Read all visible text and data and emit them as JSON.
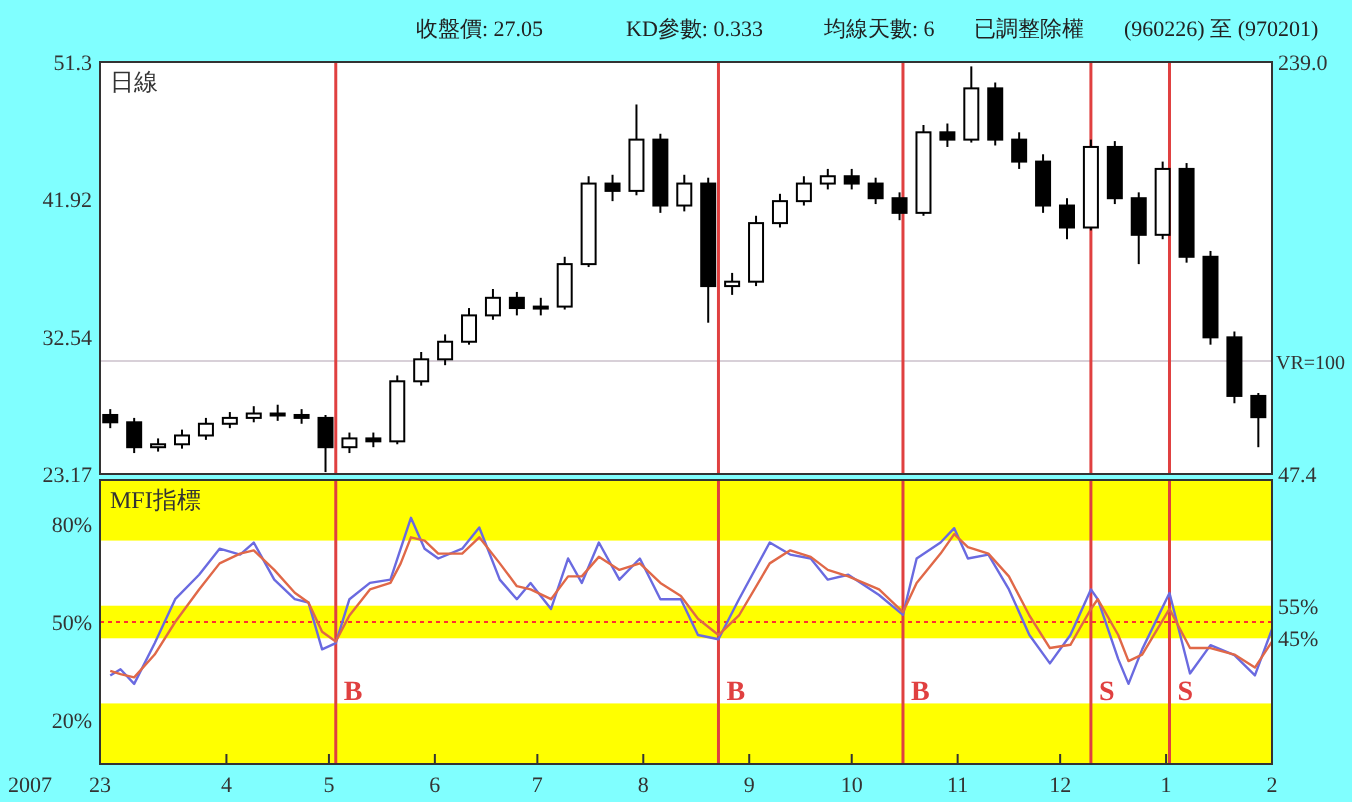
{
  "chart_data": [
    {
      "type": "candlestick",
      "title": "日線",
      "annotations": [
        "收盤價: 27.05",
        "KD參數: 0.333",
        "均線天數: 6",
        "已調整除權",
        "(960226) 至 (970201)"
      ],
      "x": [
        "2007-02-26",
        "2007-03-05",
        "2007-03-12",
        "2007-03-19",
        "2007-03-26",
        "2007-04-02",
        "2007-04-09",
        "2007-04-16",
        "2007-04-23",
        "2007-04-30",
        "2007-05-07",
        "2007-05-14",
        "2007-05-21",
        "2007-05-28",
        "2007-06-04",
        "2007-06-11",
        "2007-06-18",
        "2007-06-25",
        "2007-07-02",
        "2007-07-09",
        "2007-07-16",
        "2007-07-23",
        "2007-07-30",
        "2007-08-06",
        "2007-08-13",
        "2007-08-20",
        "2007-08-27",
        "2007-09-03",
        "2007-09-10",
        "2007-09-17",
        "2007-09-24",
        "2007-10-01",
        "2007-10-08",
        "2007-10-15",
        "2007-10-22",
        "2007-10-29",
        "2007-11-05",
        "2007-11-12",
        "2007-11-19",
        "2007-11-26",
        "2007-12-03",
        "2007-12-10",
        "2007-12-17",
        "2007-12-24",
        "2007-12-31",
        "2008-01-07",
        "2008-01-14",
        "2008-01-21",
        "2008-01-28"
      ],
      "ohlc": [
        [
          27.2,
          27.6,
          26.3,
          26.7
        ],
        [
          26.7,
          27.0,
          24.6,
          25.0
        ],
        [
          25.0,
          25.6,
          24.7,
          25.2
        ],
        [
          25.2,
          26.2,
          24.9,
          25.8
        ],
        [
          25.8,
          27.0,
          25.5,
          26.6
        ],
        [
          26.6,
          27.4,
          26.3,
          27.0
        ],
        [
          27.0,
          27.8,
          26.7,
          27.3
        ],
        [
          27.3,
          27.9,
          26.8,
          27.2
        ],
        [
          27.2,
          27.6,
          26.6,
          27.0
        ],
        [
          27.0,
          27.2,
          23.3,
          25.0
        ],
        [
          25.0,
          26.0,
          24.6,
          25.6
        ],
        [
          25.6,
          26.0,
          25.0,
          25.4
        ],
        [
          25.4,
          29.9,
          25.2,
          29.5
        ],
        [
          29.5,
          31.5,
          29.2,
          31.0
        ],
        [
          31.0,
          32.7,
          30.6,
          32.2
        ],
        [
          32.2,
          34.5,
          32.0,
          34.0
        ],
        [
          34.0,
          35.8,
          33.7,
          35.2
        ],
        [
          35.2,
          35.6,
          34.0,
          34.5
        ],
        [
          34.5,
          35.2,
          34.0,
          34.6
        ],
        [
          34.6,
          38.0,
          34.4,
          37.5
        ],
        [
          37.5,
          43.5,
          37.3,
          43.0
        ],
        [
          43.0,
          43.6,
          41.8,
          42.5
        ],
        [
          42.5,
          48.4,
          42.2,
          46.0
        ],
        [
          46.0,
          46.4,
          41.0,
          41.5
        ],
        [
          41.5,
          43.6,
          41.1,
          43.0
        ],
        [
          43.0,
          43.4,
          33.5,
          36.0
        ],
        [
          36.0,
          36.9,
          35.4,
          36.3
        ],
        [
          36.3,
          40.8,
          36.0,
          40.3
        ],
        [
          40.3,
          42.3,
          40.0,
          41.8
        ],
        [
          41.8,
          43.5,
          41.5,
          43.0
        ],
        [
          43.0,
          44.0,
          42.6,
          43.5
        ],
        [
          43.5,
          44.0,
          42.6,
          43.0
        ],
        [
          43.0,
          43.4,
          41.6,
          42.0
        ],
        [
          42.0,
          42.4,
          40.5,
          41.0
        ],
        [
          41.0,
          47.0,
          40.8,
          46.5
        ],
        [
          46.5,
          47.1,
          45.5,
          46.0
        ],
        [
          46.0,
          51.0,
          45.8,
          49.5
        ],
        [
          49.5,
          49.9,
          45.6,
          46.0
        ],
        [
          46.0,
          46.5,
          44.0,
          44.5
        ],
        [
          44.5,
          45.0,
          41.0,
          41.5
        ],
        [
          41.5,
          42.0,
          39.2,
          40.0
        ],
        [
          40.0,
          46.0,
          39.8,
          45.5
        ],
        [
          45.5,
          45.9,
          41.6,
          42.0
        ],
        [
          42.0,
          42.4,
          37.5,
          39.5
        ],
        [
          39.5,
          44.5,
          39.2,
          44.0
        ],
        [
          44.0,
          44.4,
          37.6,
          38.0
        ],
        [
          38.0,
          38.4,
          32.0,
          32.5
        ],
        [
          32.5,
          32.9,
          28.0,
          28.5
        ],
        [
          28.5,
          28.7,
          25.0,
          27.05
        ]
      ],
      "xlim": [
        "2007-02-23",
        "2008-02-01"
      ],
      "ylim": [
        23.17,
        51.3
      ],
      "yticks": [
        23.17,
        32.54,
        41.92,
        51.3
      ],
      "y2lim": [
        47.4,
        239
      ],
      "y2ticks": [
        47.4,
        {
          "value": 239,
          "label": "239.0"
        }
      ],
      "tick_labels": "y",
      "ref_lines": [
        {
          "axis": "y2",
          "value": 100,
          "label": "VR=100",
          "color": "#d8d0d8"
        },
        {
          "axis": "x",
          "value": "2007-05-03",
          "color": "#e04040"
        },
        {
          "axis": "x",
          "value": "2007-08-23",
          "color": "#e04040"
        },
        {
          "axis": "x",
          "value": "2007-10-16",
          "color": "#e04040"
        },
        {
          "axis": "x",
          "value": "2007-12-10",
          "color": "#e04040"
        },
        {
          "axis": "x",
          "value": "2008-01-02",
          "color": "#e04040"
        }
      ]
    },
    {
      "type": "line",
      "title": "MFI指標",
      "annotations": [
        "2007"
      ],
      "x": [
        "2007-02-26",
        "2007-03-01",
        "2007-03-05",
        "2007-03-11",
        "2007-03-17",
        "2007-03-24",
        "2007-03-30",
        "2007-04-05",
        "2007-04-09",
        "2007-04-15",
        "2007-04-21",
        "2007-04-25",
        "2007-04-29",
        "2007-05-03",
        "2007-05-07",
        "2007-05-13",
        "2007-05-19",
        "2007-05-22",
        "2007-05-25",
        "2007-05-29",
        "2007-06-02",
        "2007-06-09",
        "2007-06-14",
        "2007-06-20",
        "2007-06-25",
        "2007-06-29",
        "2007-07-05",
        "2007-07-10",
        "2007-07-14",
        "2007-07-19",
        "2007-07-25",
        "2007-07-31",
        "2007-08-06",
        "2007-08-12",
        "2007-08-17",
        "2007-08-23",
        "2007-08-29",
        "2007-09-07",
        "2007-09-13",
        "2007-09-19",
        "2007-09-24",
        "2007-09-30",
        "2007-10-09",
        "2007-10-16",
        "2007-10-20",
        "2007-10-27",
        "2007-10-31",
        "2007-11-04",
        "2007-11-10",
        "2007-11-16",
        "2007-11-22",
        "2007-11-28",
        "2007-12-04",
        "2007-12-10",
        "2007-12-12",
        "2007-12-18",
        "2007-12-21",
        "2007-12-25",
        "2008-01-02",
        "2008-01-08",
        "2008-01-14",
        "2008-01-21",
        "2008-01-27",
        "2008-02-01"
      ],
      "series": [
        {
          "color": "#6a6ae0",
          "values": [
            33.6,
            35.5,
            31,
            43.5,
            57,
            64.5,
            72.5,
            70.7,
            74.4,
            63,
            57,
            56,
            41.6,
            43.5,
            57,
            62,
            63,
            72.5,
            82,
            72.5,
            69.5,
            72.5,
            79,
            63,
            57,
            62,
            54,
            69.5,
            62,
            74.4,
            63,
            69.5,
            57,
            57,
            46,
            44.7,
            57,
            74.4,
            70.7,
            69.5,
            63,
            64.5,
            58.3,
            52.2,
            69.5,
            74.4,
            78.8,
            69.5,
            70.7,
            60,
            46,
            37.3,
            46,
            60,
            57,
            38.6,
            31,
            41.6,
            58.9,
            34.2,
            42.9,
            39.8,
            33.6,
            47.8
          ]
        },
        {
          "color": "#e06848",
          "values": [
            35,
            34,
            33,
            40,
            50,
            60,
            68,
            71,
            72,
            66,
            59,
            56,
            47,
            44,
            52,
            60,
            62,
            68,
            76,
            75,
            71,
            71,
            76,
            68,
            61,
            60,
            57,
            64,
            64,
            70,
            66,
            68,
            62,
            58,
            51,
            46,
            52,
            68,
            72,
            70,
            66,
            64,
            60,
            53,
            62,
            71,
            77,
            73,
            71,
            64,
            52,
            42,
            43,
            54,
            57,
            46,
            38,
            40,
            54,
            42,
            42,
            40,
            36,
            44
          ]
        }
      ],
      "xlim": [
        "2007-02-23",
        "2008-02-01"
      ],
      "xticks": [
        {
          "value": "2007-02-23",
          "label": "23"
        },
        {
          "value": "2007-04-01",
          "label": "4"
        },
        {
          "value": "2007-05-01",
          "label": "5"
        },
        {
          "value": "2007-06-01",
          "label": "6"
        },
        {
          "value": "2007-07-01",
          "label": "7"
        },
        {
          "value": "2007-08-01",
          "label": "8"
        },
        {
          "value": "2007-09-01",
          "label": "9"
        },
        {
          "value": "2007-10-01",
          "label": "10"
        },
        {
          "value": "2007-11-01",
          "label": "11"
        },
        {
          "value": "2007-12-01",
          "label": "12"
        },
        {
          "value": "2008-01-01",
          "label": "1"
        },
        {
          "value": "2008-02-01",
          "label": "2"
        }
      ],
      "ylim": [
        6.4,
        93.6
      ],
      "yticks": [
        {
          "value": 20,
          "label": "20%"
        },
        {
          "value": 50,
          "label": "50%"
        },
        {
          "value": 80,
          "label": "80%"
        }
      ],
      "y2lim": [
        6.4,
        93.6
      ],
      "y2ticks": [
        {
          "value": 45,
          "label": "45%"
        },
        {
          "value": 55,
          "label": "55%"
        }
      ],
      "bands": [
        {
          "axis": "y",
          "from": 75,
          "to": 93.6,
          "color": "#ffff00"
        },
        {
          "axis": "y",
          "from": 45,
          "to": 55,
          "color": "#ffff00"
        },
        {
          "axis": "y",
          "from": 6.4,
          "to": 25,
          "color": "#ffff00"
        }
      ],
      "ref_lines": [
        {
          "axis": "y",
          "value": 50,
          "color": "#ff3030",
          "line_style": "dotted"
        },
        {
          "axis": "x",
          "value": "2007-05-03",
          "label": "B",
          "color": "#e04040"
        },
        {
          "axis": "x",
          "value": "2007-08-23",
          "label": "B",
          "color": "#e04040"
        },
        {
          "axis": "x",
          "value": "2007-10-16",
          "label": "B",
          "color": "#e04040"
        },
        {
          "axis": "x",
          "value": "2007-12-10",
          "label": "S",
          "color": "#e04040"
        },
        {
          "axis": "x",
          "value": "2008-01-02",
          "label": "S",
          "color": "#e04040"
        }
      ]
    }
  ]
}
